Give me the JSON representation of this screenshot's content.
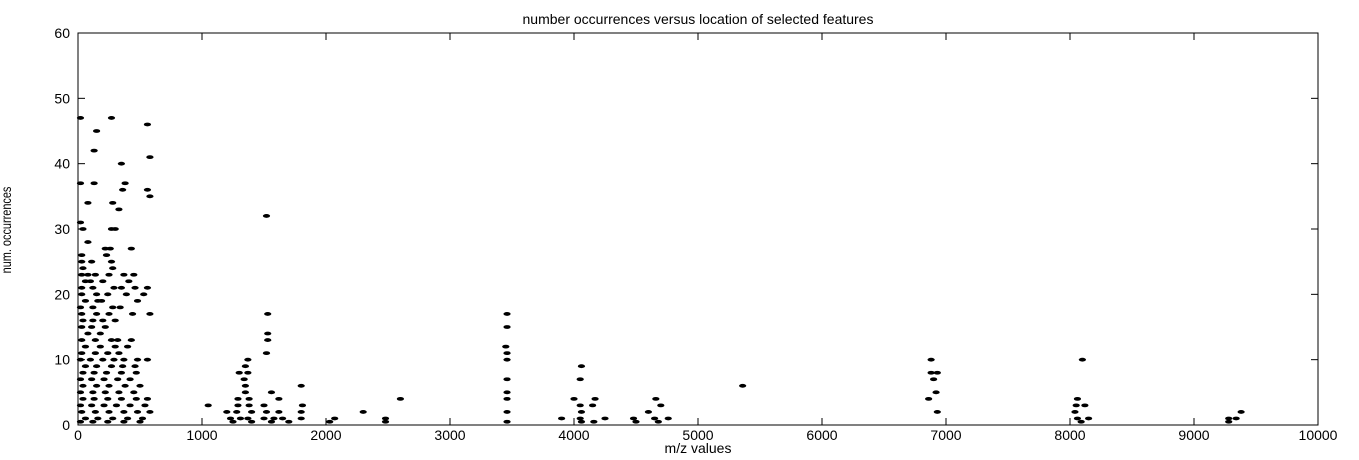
{
  "chart_data": {
    "type": "scatter",
    "title": "number occurrences versus location of selected features",
    "xlabel": "m/z values",
    "ylabel": "num. occurrences",
    "xlim": [
      0,
      10000
    ],
    "ylim": [
      0,
      60
    ],
    "xticks": [
      0,
      1000,
      2000,
      3000,
      4000,
      5000,
      6000,
      7000,
      8000,
      9000,
      10000
    ],
    "yticks": [
      0,
      10,
      20,
      30,
      40,
      50,
      60
    ],
    "grid": false,
    "marker_color": "#000000",
    "points": [
      [
        20,
        47
      ],
      [
        150,
        45
      ],
      [
        270,
        47
      ],
      [
        560,
        46
      ],
      [
        130,
        42
      ],
      [
        350,
        40
      ],
      [
        580,
        41
      ],
      [
        20,
        37
      ],
      [
        130,
        37
      ],
      [
        380,
        37
      ],
      [
        360,
        36
      ],
      [
        560,
        36
      ],
      [
        580,
        35
      ],
      [
        80,
        34
      ],
      [
        280,
        34
      ],
      [
        330,
        33
      ],
      [
        1520,
        32
      ],
      [
        20,
        31
      ],
      [
        40,
        30
      ],
      [
        270,
        30
      ],
      [
        300,
        30
      ],
      [
        80,
        28
      ],
      [
        220,
        27
      ],
      [
        260,
        27
      ],
      [
        430,
        27
      ],
      [
        30,
        26
      ],
      [
        230,
        26
      ],
      [
        30,
        25
      ],
      [
        110,
        25
      ],
      [
        270,
        25
      ],
      [
        40,
        24
      ],
      [
        280,
        24
      ],
      [
        30,
        23
      ],
      [
        80,
        23
      ],
      [
        140,
        23
      ],
      [
        250,
        23
      ],
      [
        370,
        23
      ],
      [
        450,
        23
      ],
      [
        60,
        22
      ],
      [
        100,
        22
      ],
      [
        200,
        22
      ],
      [
        410,
        22
      ],
      [
        30,
        21
      ],
      [
        120,
        21
      ],
      [
        290,
        21
      ],
      [
        350,
        21
      ],
      [
        460,
        21
      ],
      [
        560,
        21
      ],
      [
        30,
        20
      ],
      [
        150,
        20
      ],
      [
        240,
        20
      ],
      [
        390,
        20
      ],
      [
        530,
        20
      ],
      [
        60,
        19
      ],
      [
        160,
        19
      ],
      [
        190,
        19
      ],
      [
        480,
        19
      ],
      [
        20,
        18
      ],
      [
        120,
        18
      ],
      [
        280,
        18
      ],
      [
        340,
        18
      ],
      [
        30,
        17
      ],
      [
        150,
        17
      ],
      [
        250,
        17
      ],
      [
        440,
        17
      ],
      [
        580,
        17
      ],
      [
        1530,
        17
      ],
      [
        3460,
        17
      ],
      [
        40,
        16
      ],
      [
        120,
        16
      ],
      [
        200,
        16
      ],
      [
        300,
        16
      ],
      [
        30,
        15
      ],
      [
        110,
        15
      ],
      [
        220,
        15
      ],
      [
        3460,
        15
      ],
      [
        80,
        14
      ],
      [
        180,
        14
      ],
      [
        1530,
        14
      ],
      [
        30,
        13
      ],
      [
        140,
        13
      ],
      [
        270,
        13
      ],
      [
        320,
        13
      ],
      [
        430,
        13
      ],
      [
        1530,
        13
      ],
      [
        60,
        12
      ],
      [
        180,
        12
      ],
      [
        300,
        12
      ],
      [
        400,
        12
      ],
      [
        3450,
        12
      ],
      [
        30,
        11
      ],
      [
        140,
        11
      ],
      [
        240,
        11
      ],
      [
        330,
        11
      ],
      [
        3460,
        11
      ],
      [
        1520,
        11
      ],
      [
        20,
        10
      ],
      [
        100,
        10
      ],
      [
        200,
        10
      ],
      [
        290,
        10
      ],
      [
        370,
        10
      ],
      [
        480,
        10
      ],
      [
        560,
        10
      ],
      [
        1370,
        10
      ],
      [
        3460,
        10
      ],
      [
        6880,
        10
      ],
      [
        8100,
        10
      ],
      [
        60,
        9
      ],
      [
        150,
        9
      ],
      [
        270,
        9
      ],
      [
        360,
        9
      ],
      [
        460,
        9
      ],
      [
        1350,
        9
      ],
      [
        4060,
        9
      ],
      [
        40,
        8
      ],
      [
        130,
        8
      ],
      [
        230,
        8
      ],
      [
        350,
        8
      ],
      [
        470,
        8
      ],
      [
        1300,
        8
      ],
      [
        1370,
        8
      ],
      [
        6880,
        8
      ],
      [
        6930,
        8
      ],
      [
        20,
        7
      ],
      [
        110,
        7
      ],
      [
        210,
        7
      ],
      [
        320,
        7
      ],
      [
        420,
        7
      ],
      [
        1340,
        7
      ],
      [
        3460,
        7
      ],
      [
        4050,
        7
      ],
      [
        6900,
        7
      ],
      [
        40,
        6
      ],
      [
        150,
        6
      ],
      [
        250,
        6
      ],
      [
        380,
        6
      ],
      [
        500,
        6
      ],
      [
        1350,
        6
      ],
      [
        1800,
        6
      ],
      [
        5360,
        6
      ],
      [
        20,
        5
      ],
      [
        120,
        5
      ],
      [
        220,
        5
      ],
      [
        330,
        5
      ],
      [
        450,
        5
      ],
      [
        1350,
        5
      ],
      [
        1560,
        5
      ],
      [
        3460,
        5
      ],
      [
        6920,
        5
      ],
      [
        40,
        4
      ],
      [
        130,
        4
      ],
      [
        240,
        4
      ],
      [
        350,
        4
      ],
      [
        470,
        4
      ],
      [
        560,
        4
      ],
      [
        1290,
        4
      ],
      [
        1380,
        4
      ],
      [
        1620,
        4
      ],
      [
        2600,
        4
      ],
      [
        3460,
        4
      ],
      [
        4000,
        4
      ],
      [
        4170,
        4
      ],
      [
        4660,
        4
      ],
      [
        6860,
        4
      ],
      [
        8060,
        4
      ],
      [
        20,
        3
      ],
      [
        110,
        3
      ],
      [
        210,
        3
      ],
      [
        310,
        3
      ],
      [
        420,
        3
      ],
      [
        540,
        3
      ],
      [
        1050,
        3
      ],
      [
        1290,
        3
      ],
      [
        1380,
        3
      ],
      [
        1500,
        3
      ],
      [
        1810,
        3
      ],
      [
        4050,
        3
      ],
      [
        4150,
        3
      ],
      [
        4700,
        3
      ],
      [
        8050,
        3
      ],
      [
        8120,
        3
      ],
      [
        30,
        2
      ],
      [
        140,
        2
      ],
      [
        250,
        2
      ],
      [
        370,
        2
      ],
      [
        480,
        2
      ],
      [
        580,
        2
      ],
      [
        1200,
        2
      ],
      [
        1280,
        2
      ],
      [
        1400,
        2
      ],
      [
        1520,
        2
      ],
      [
        1620,
        2
      ],
      [
        1800,
        2
      ],
      [
        2300,
        2
      ],
      [
        3460,
        2
      ],
      [
        4060,
        2
      ],
      [
        4600,
        2
      ],
      [
        6930,
        2
      ],
      [
        8040,
        2
      ],
      [
        9380,
        2
      ],
      [
        60,
        1
      ],
      [
        160,
        1
      ],
      [
        280,
        1
      ],
      [
        400,
        1
      ],
      [
        520,
        1
      ],
      [
        1230,
        1
      ],
      [
        1310,
        1
      ],
      [
        1370,
        1
      ],
      [
        1500,
        1
      ],
      [
        1580,
        1
      ],
      [
        1650,
        1
      ],
      [
        1800,
        1
      ],
      [
        2070,
        1
      ],
      [
        2480,
        1
      ],
      [
        3900,
        1
      ],
      [
        4050,
        1
      ],
      [
        4250,
        1
      ],
      [
        4480,
        1
      ],
      [
        4650,
        1
      ],
      [
        4760,
        1
      ],
      [
        8060,
        1
      ],
      [
        8150,
        1
      ],
      [
        9280,
        1
      ],
      [
        9340,
        1
      ],
      [
        20,
        0.5
      ],
      [
        120,
        0.5
      ],
      [
        240,
        0.5
      ],
      [
        370,
        0.5
      ],
      [
        500,
        0.5
      ],
      [
        1250,
        0.5
      ],
      [
        1400,
        0.5
      ],
      [
        1560,
        0.5
      ],
      [
        1700,
        0.5
      ],
      [
        2030,
        0.5
      ],
      [
        2480,
        0.5
      ],
      [
        3460,
        0.5
      ],
      [
        4060,
        0.5
      ],
      [
        4160,
        0.5
      ],
      [
        4500,
        0.5
      ],
      [
        4680,
        0.5
      ],
      [
        8090,
        0.5
      ],
      [
        9280,
        0.5
      ]
    ]
  }
}
